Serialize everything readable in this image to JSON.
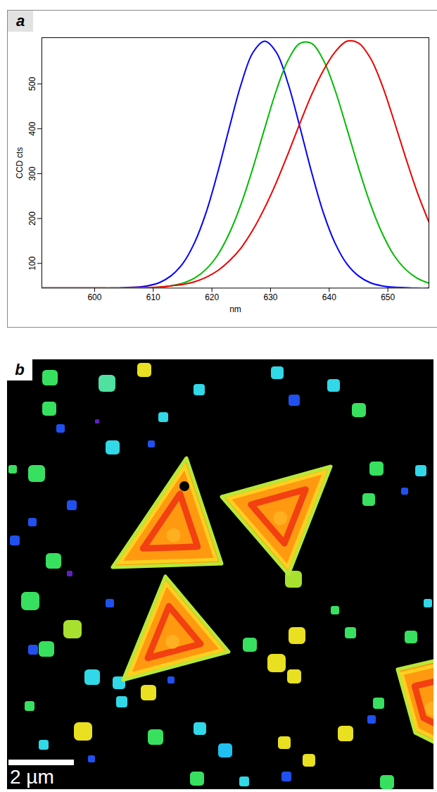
{
  "chart_data": {
    "type": "line",
    "panel_label": "a",
    "x_label": "nm",
    "y_label": "CCD cts",
    "xlim": [
      591,
      657
    ],
    "ylim": [
      45,
      603
    ],
    "xticks": [
      600,
      610,
      620,
      630,
      640,
      650
    ],
    "yticks": [
      100,
      200,
      300,
      400,
      500
    ],
    "x": [
      591,
      593,
      595,
      597,
      599,
      601,
      603,
      605,
      607,
      609,
      611,
      613,
      615,
      617,
      619,
      621,
      623,
      625,
      627,
      629,
      631,
      633,
      635,
      637,
      639,
      641,
      643,
      645,
      647,
      649,
      651,
      653,
      655,
      657
    ],
    "series": [
      {
        "color": "#0000ff",
        "values": [
          45,
          45,
          45,
          45,
          45,
          45,
          45,
          46,
          47,
          50,
          57,
          72,
          99,
          145,
          213,
          303,
          404,
          500,
          570,
          595,
          570,
          500,
          404,
          303,
          213,
          145,
          99,
          72,
          57,
          50,
          47,
          46,
          45,
          45
        ]
      },
      {
        "color": "#00bb00",
        "values": [
          45,
          45,
          45,
          45,
          45,
          45,
          45,
          45,
          45,
          46,
          47,
          50,
          56,
          67,
          87,
          119,
          168,
          233,
          313,
          401,
          486,
          553,
          590,
          590,
          553,
          486,
          401,
          313,
          233,
          168,
          119,
          87,
          67,
          56
        ]
      },
      {
        "color": "#ee0000",
        "values": [
          45,
          45,
          45,
          45,
          45,
          45,
          45,
          45,
          46,
          46,
          47,
          50,
          53,
          59,
          69,
          84,
          106,
          135,
          175,
          224,
          281,
          345,
          412,
          476,
          530,
          571,
          595,
          591,
          558,
          498,
          420,
          337,
          259,
          192
        ]
      }
    ]
  },
  "image": {
    "panel_label": "b",
    "scale_bar": "2 µm"
  }
}
